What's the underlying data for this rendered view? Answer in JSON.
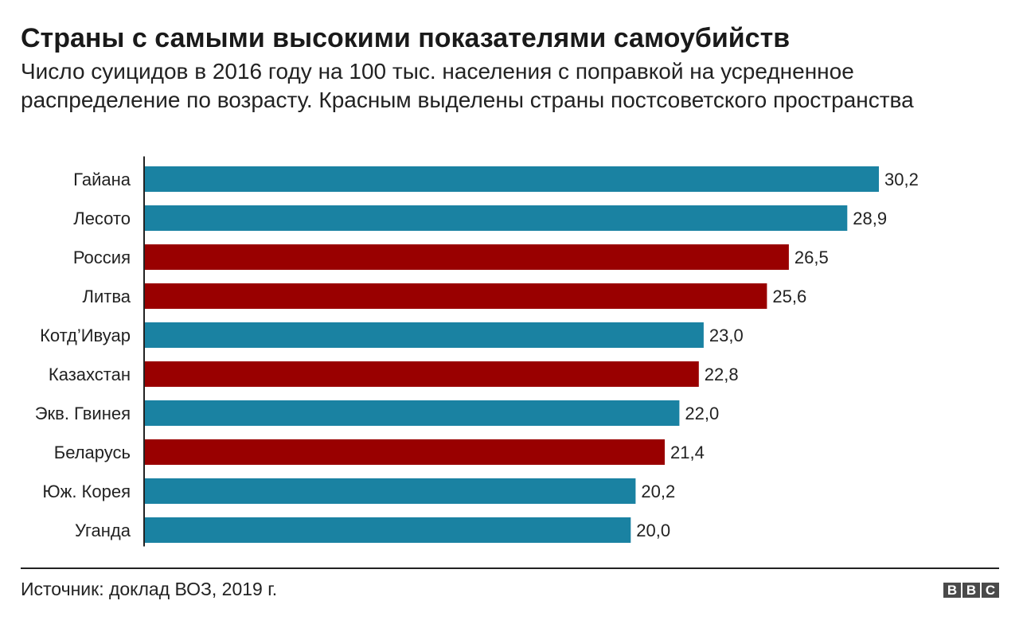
{
  "title": "Страны с самыми высокими показателями самоубийств",
  "subtitle": "Число суицидов в 2016 году на 100 тыс. населения с поправкой на усредненное распределение по возрасту. Красным выделены страны постсоветского пространства",
  "source": "Источник: доклад ВОЗ, 2019 г.",
  "logo": [
    "B",
    "B",
    "C"
  ],
  "colors": {
    "default": "#1a82a2",
    "post_soviet": "#990000"
  },
  "chart_data": {
    "type": "bar",
    "orientation": "horizontal",
    "categories": [
      "Гайана",
      "Лесото",
      "Россия",
      "Литва",
      "Котд’Ивуар",
      "Казахстан",
      "Экв. Гвинея",
      "Беларусь",
      "Юж. Корея",
      "Уганда"
    ],
    "values": [
      30.2,
      28.9,
      26.5,
      25.6,
      23.0,
      22.8,
      22.0,
      21.4,
      20.2,
      20.0
    ],
    "value_labels": [
      "30,2",
      "28,9",
      "26,5",
      "25,6",
      "23,0",
      "22,8",
      "22,0",
      "21,4",
      "20,2",
      "20,0"
    ],
    "highlight": [
      false,
      false,
      true,
      true,
      false,
      true,
      false,
      true,
      false,
      false
    ],
    "xlim": [
      0,
      30.2
    ],
    "grid": false,
    "legend": "none"
  }
}
